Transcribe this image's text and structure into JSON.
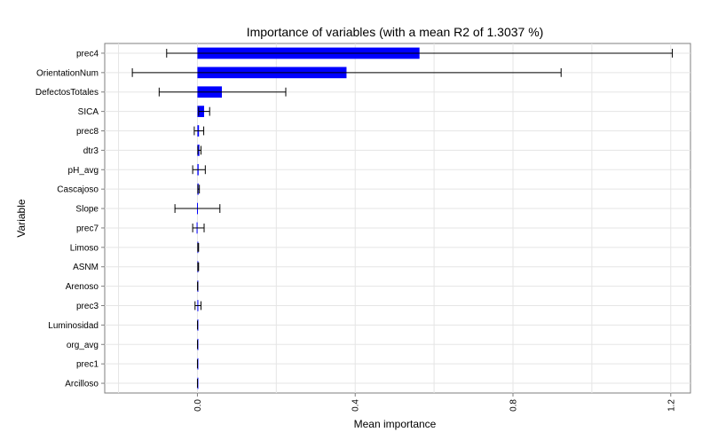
{
  "chart_data": {
    "type": "bar",
    "orientation": "horizontal",
    "title": "Importance of variables (with a mean R2 of 1.3037 %)",
    "xlabel": "Mean importance",
    "ylabel": "Variable",
    "xlim": [
      -0.235,
      1.25
    ],
    "x_ticks": [
      0.0,
      0.4,
      0.8,
      1.2
    ],
    "x_tick_labels": [
      "0.0",
      "0.4",
      "0.8",
      "1.2"
    ],
    "categories": [
      "prec4",
      "OrientationNum",
      "DefectosTotales",
      "SICA",
      "prec8",
      "dtr3",
      "pH_avg",
      "Cascajoso",
      "Slope",
      "prec7",
      "Limoso",
      "ASNM",
      "Arenoso",
      "prec3",
      "Luminosidad",
      "org_avg",
      "prec1",
      "Arcilloso"
    ],
    "values": [
      0.563,
      0.378,
      0.062,
      0.017,
      0.004,
      0.005,
      0.003,
      0.003,
      -0.001,
      -0.002,
      0.002,
      0.002,
      0.0005,
      0.001,
      0.0002,
      0.0002,
      0.0001,
      0.0001
    ],
    "error_low": [
      -0.078,
      -0.165,
      -0.097,
      0.003,
      -0.008,
      0.001,
      -0.012,
      0.001,
      -0.057,
      -0.012,
      0.001,
      0.001,
      0.0003,
      -0.006,
      0.0001,
      0.0001,
      5e-05,
      5e-05
    ],
    "error_high": [
      1.204,
      0.922,
      0.224,
      0.031,
      0.016,
      0.009,
      0.02,
      0.005,
      0.057,
      0.017,
      0.003,
      0.003,
      0.0008,
      0.009,
      0.0003,
      0.0003,
      0.00015,
      0.00015
    ],
    "bar_color": "#0000ff",
    "error_bar_color": "#000000",
    "grid": true,
    "grid_color": "#e5e5e5",
    "legend": "none"
  }
}
